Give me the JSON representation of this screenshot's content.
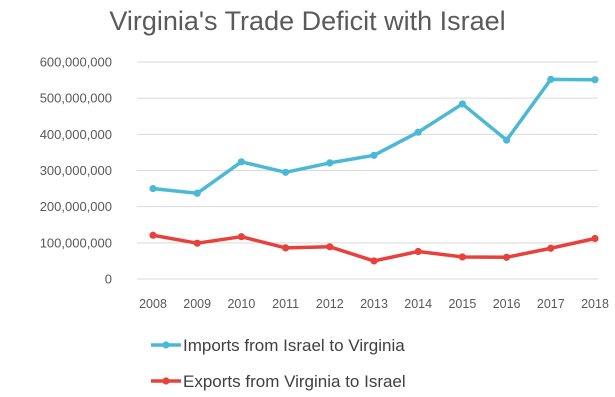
{
  "chart_data": {
    "type": "line",
    "title": "Virginia's Trade Deficit with Israel",
    "xlabel": "",
    "ylabel": "",
    "x": [
      "2008",
      "2009",
      "2010",
      "2011",
      "2012",
      "2013",
      "2014",
      "2015",
      "2016",
      "2017",
      "2018"
    ],
    "ylim": [
      0,
      600000000
    ],
    "yticks": [
      "0",
      "100,000,000",
      "200,000,000",
      "300,000,000",
      "400,000,000",
      "500,000,000",
      "600,000,000"
    ],
    "grid": true,
    "legend_position": "bottom",
    "series": [
      {
        "name": "Imports from Israel to Virginia",
        "color": "#4bb8d6",
        "values": [
          250000000,
          237000000,
          324000000,
          295000000,
          321000000,
          342000000,
          406000000,
          484000000,
          384000000,
          552000000,
          551000000
        ]
      },
      {
        "name": "Exports from Virginia to Israel",
        "color": "#e8413c",
        "values": [
          121000000,
          99000000,
          117000000,
          86000000,
          89000000,
          50000000,
          76000000,
          61000000,
          60000000,
          85000000,
          112000000
        ]
      }
    ]
  }
}
